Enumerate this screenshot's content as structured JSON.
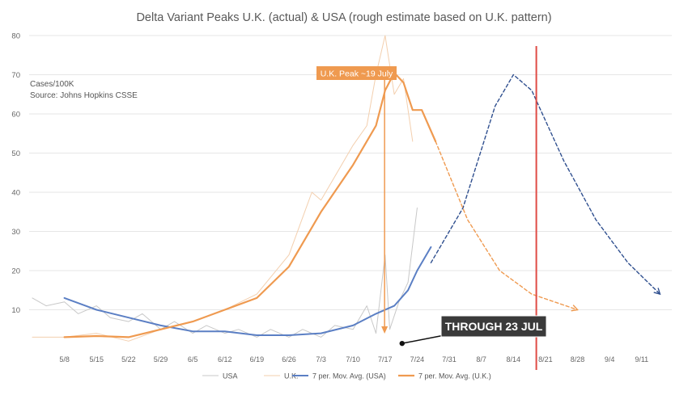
{
  "colors": {
    "usa_raw": "#c8c8c8",
    "uk_raw": "#f3cfae",
    "usa_avg": "#5b7fc4",
    "uk_avg": "#ef9a50",
    "usa_projection": "#2f4f8f",
    "red_line": "#e04b45",
    "callout_bg": "#ef9a50",
    "banner_bg": "#3a3a3a",
    "grid": "#e6e6e6",
    "text": "#666666"
  },
  "chart_data": {
    "type": "line",
    "title": "Delta Variant Peaks U.K. (actual) & USA (rough estimate based on U.K. pattern)",
    "units_note": "Cases/100K",
    "source_note": "Source: Johns Hopkins CSSE",
    "xlabel": "",
    "ylabel": "",
    "x_ticks": [
      "5/8",
      "5/15",
      "5/22",
      "5/29",
      "6/5",
      "6/12",
      "6/19",
      "6/26",
      "7/3",
      "7/10",
      "7/17",
      "7/24",
      "7/31",
      "8/7",
      "8/14",
      "8/21",
      "8/28",
      "9/4",
      "9/11"
    ],
    "x_range": [
      "5/1",
      "9/15"
    ],
    "ylim": [
      0,
      80
    ],
    "y_ticks": [
      10,
      20,
      30,
      40,
      50,
      60,
      70,
      80
    ],
    "grid": true,
    "legend_position": "bottom",
    "series": [
      {
        "name": "USA",
        "style": "thin",
        "points": [
          [
            "5/1",
            13
          ],
          [
            "5/4",
            11
          ],
          [
            "5/8",
            12
          ],
          [
            "5/11",
            9
          ],
          [
            "5/15",
            11
          ],
          [
            "5/18",
            8
          ],
          [
            "5/22",
            7
          ],
          [
            "5/25",
            9
          ],
          [
            "5/29",
            5
          ],
          [
            "6/1",
            7
          ],
          [
            "6/5",
            4
          ],
          [
            "6/8",
            6
          ],
          [
            "6/12",
            4
          ],
          [
            "6/15",
            5
          ],
          [
            "6/19",
            3
          ],
          [
            "6/22",
            5
          ],
          [
            "6/26",
            3
          ],
          [
            "6/29",
            5
          ],
          [
            "7/3",
            3
          ],
          [
            "7/6",
            6
          ],
          [
            "7/10",
            5
          ],
          [
            "7/13",
            11
          ],
          [
            "7/15",
            4
          ],
          [
            "7/17",
            24
          ],
          [
            "7/18",
            5
          ],
          [
            "7/20",
            12
          ],
          [
            "7/22",
            17
          ],
          [
            "7/24",
            36
          ]
        ]
      },
      {
        "name": "U.K.",
        "style": "thin",
        "points": [
          [
            "5/1",
            3
          ],
          [
            "5/8",
            3
          ],
          [
            "5/15",
            4
          ],
          [
            "5/22",
            2
          ],
          [
            "5/29",
            5
          ],
          [
            "6/5",
            7
          ],
          [
            "6/12",
            10
          ],
          [
            "6/19",
            14
          ],
          [
            "6/26",
            24
          ],
          [
            "7/1",
            40
          ],
          [
            "7/3",
            38
          ],
          [
            "7/6",
            44
          ],
          [
            "7/10",
            52
          ],
          [
            "7/13",
            57
          ],
          [
            "7/15",
            70
          ],
          [
            "7/17",
            80
          ],
          [
            "7/19",
            65
          ],
          [
            "7/21",
            69
          ],
          [
            "7/23",
            53
          ]
        ]
      },
      {
        "name": "7 per. Mov. Avg. (USA)",
        "style": "thick",
        "points": [
          [
            "5/8",
            13
          ],
          [
            "5/15",
            10
          ],
          [
            "5/22",
            8
          ],
          [
            "5/29",
            6
          ],
          [
            "6/5",
            4.5
          ],
          [
            "6/12",
            4.5
          ],
          [
            "6/19",
            3.5
          ],
          [
            "6/26",
            3.5
          ],
          [
            "7/3",
            4
          ],
          [
            "7/10",
            6
          ],
          [
            "7/15",
            9
          ],
          [
            "7/19",
            11
          ],
          [
            "7/22",
            15
          ],
          [
            "7/24",
            20
          ],
          [
            "7/27",
            26
          ]
        ]
      },
      {
        "name": "7 per. Mov. Avg. (U.K.)",
        "style": "thick",
        "points": [
          [
            "5/8",
            3
          ],
          [
            "5/15",
            3.3
          ],
          [
            "5/22",
            3
          ],
          [
            "5/29",
            5
          ],
          [
            "6/5",
            7
          ],
          [
            "6/12",
            10
          ],
          [
            "6/19",
            13
          ],
          [
            "6/26",
            21
          ],
          [
            "7/3",
            35
          ],
          [
            "7/10",
            47
          ],
          [
            "7/15",
            57
          ],
          [
            "7/17",
            66
          ],
          [
            "7/19",
            70.5
          ],
          [
            "7/21",
            68
          ],
          [
            "7/23",
            61
          ],
          [
            "7/25",
            61
          ],
          [
            "7/28",
            53
          ]
        ]
      },
      {
        "name": "USA projection",
        "style": "dashed",
        "in_legend": false,
        "points": [
          [
            "7/27",
            22
          ],
          [
            "8/3",
            36
          ],
          [
            "8/10",
            62
          ],
          [
            "8/14",
            70
          ],
          [
            "8/18",
            66
          ],
          [
            "8/25",
            48
          ],
          [
            "9/1",
            33
          ],
          [
            "9/8",
            22
          ],
          [
            "9/15",
            14
          ]
        ]
      },
      {
        "name": "U.K. projection",
        "style": "dashed",
        "in_legend": false,
        "points": [
          [
            "7/28",
            53
          ],
          [
            "8/4",
            33
          ],
          [
            "8/11",
            20
          ],
          [
            "8/18",
            14
          ],
          [
            "8/28",
            10
          ]
        ]
      }
    ],
    "reference_line": {
      "x": "8/19",
      "color": "red"
    },
    "annotations": {
      "peak_callout": {
        "text": "U.K. Peak ~19 July",
        "x": "7/19",
        "y": 70
      },
      "through_banner": {
        "text": "THROUGH 23 JUL",
        "pointer_x": "7/23",
        "pointer_y": 1
      }
    }
  }
}
